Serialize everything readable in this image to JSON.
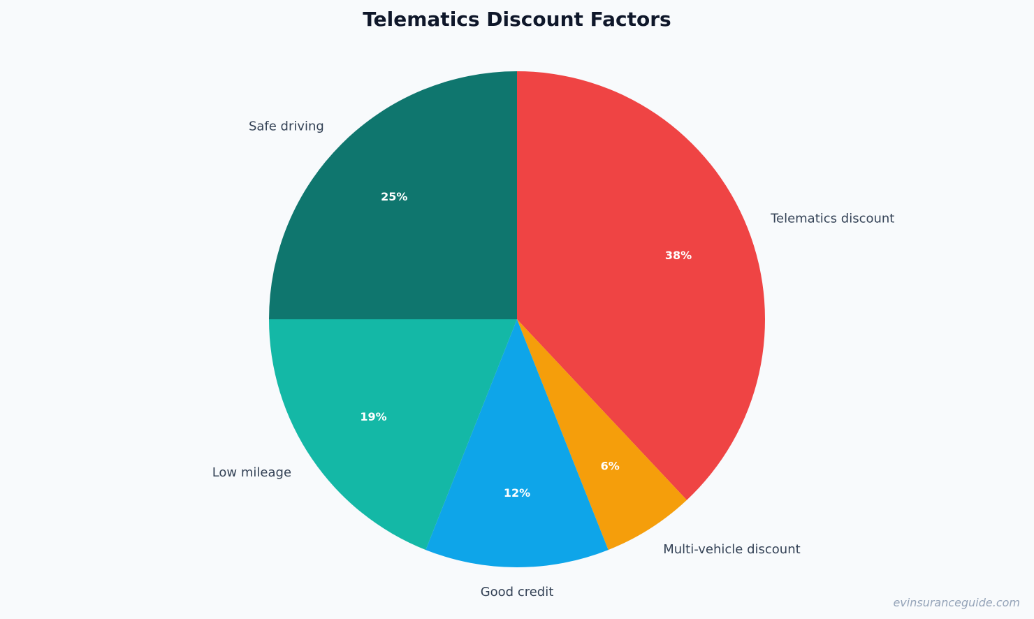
{
  "chart_data": {
    "type": "pie",
    "title": "Telematics Discount Factors",
    "start_angle_deg": 90,
    "direction": "clockwise",
    "slices": [
      {
        "label": "Telematics discount",
        "value": 38,
        "pct_label": "38%",
        "color": "#ef4444"
      },
      {
        "label": "Multi-vehicle discount",
        "value": 6,
        "pct_label": "6%",
        "color": "#f59e0b"
      },
      {
        "label": "Good credit",
        "value": 12,
        "pct_label": "12%",
        "color": "#0ea5e9"
      },
      {
        "label": "Low mileage",
        "value": 19,
        "pct_label": "19%",
        "color": "#14b8a6"
      },
      {
        "label": "Safe driving",
        "value": 25,
        "pct_label": "25%",
        "color": "#0f766e"
      }
    ]
  },
  "watermark": "evinsuranceguide.com"
}
